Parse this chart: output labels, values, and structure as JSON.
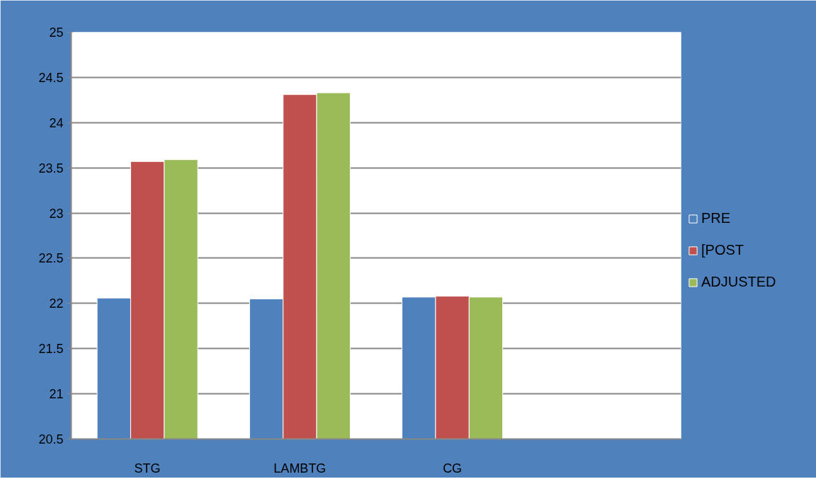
{
  "chart_data": {
    "type": "bar",
    "categories": [
      "STG",
      "LAMBTG",
      "CG",
      null
    ],
    "series": [
      {
        "name": "PRE",
        "color": "#4f81bd",
        "values": [
          22.06,
          22.05,
          22.07,
          null
        ]
      },
      {
        "name": "[POST",
        "color": "#c0504d",
        "values": [
          23.57,
          24.31,
          22.08,
          null
        ]
      },
      {
        "name": "ADJUSTED",
        "color": "#9bbb59",
        "values": [
          23.59,
          24.33,
          22.07,
          null
        ]
      }
    ],
    "ylim": [
      20.5,
      25
    ],
    "yticks": [
      20.5,
      21,
      21.5,
      22,
      22.5,
      23,
      23.5,
      24,
      24.5,
      25
    ],
    "grid": "y",
    "legend": "right"
  }
}
